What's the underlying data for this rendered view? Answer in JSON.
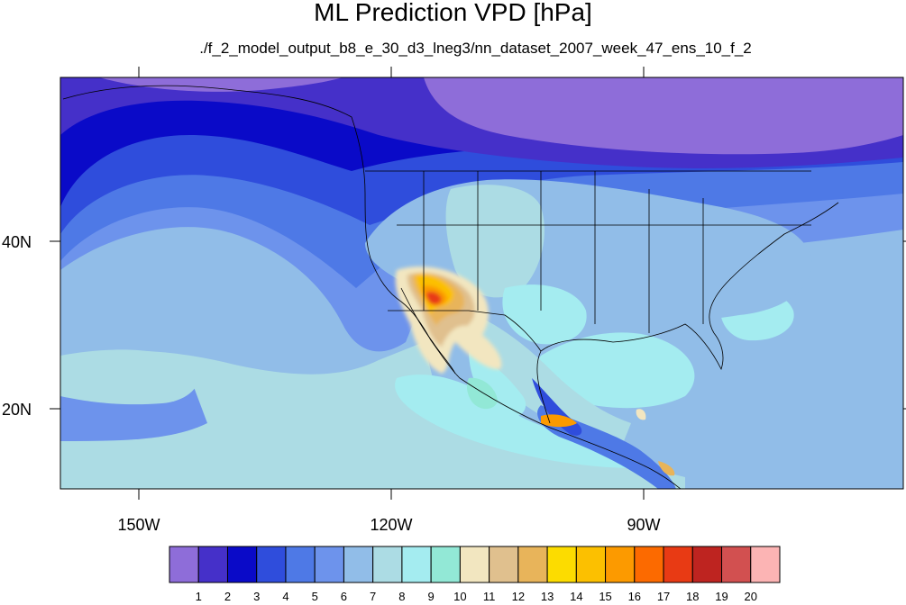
{
  "title": "ML Prediction VPD [hPa]",
  "subtitle": "./f_2_model_output_b8_e_30_d3_lneg3/nn_dataset_2007_week_47_ens_10_f_2",
  "map": {
    "projection": "cylindrical-equidistant",
    "lon_range": [
      -160,
      -62
    ],
    "lat_range": [
      10.5,
      59.5
    ],
    "lon_ticks": [
      {
        "value": -150,
        "label": "150W"
      },
      {
        "value": -120,
        "label": "120W"
      },
      {
        "value": -90,
        "label": "90W"
      }
    ],
    "lat_ticks": [
      {
        "value": 40,
        "label": "40N"
      },
      {
        "value": 20,
        "label": "20N"
      }
    ],
    "colorbar": {
      "colors": [
        "#8e6dd9",
        "#4530c9",
        "#0a0ac8",
        "#2f4ddc",
        "#4e79e6",
        "#6d93ec",
        "#91bde8",
        "#acdce4",
        "#a4ecf0",
        "#92e8d6",
        "#f2e6c0",
        "#e0c08e",
        "#e8b45a",
        "#fcdc00",
        "#fcc000",
        "#fc9a00",
        "#fc6a00",
        "#e83a14",
        "#be2420",
        "#d25050",
        "#fcb4b4"
      ],
      "levels": [
        "1",
        "2",
        "3",
        "4",
        "5",
        "6",
        "7",
        "8",
        "9",
        "10",
        "11",
        "12",
        "13",
        "14",
        "15",
        "16",
        "17",
        "18",
        "19",
        "20"
      ]
    }
  }
}
